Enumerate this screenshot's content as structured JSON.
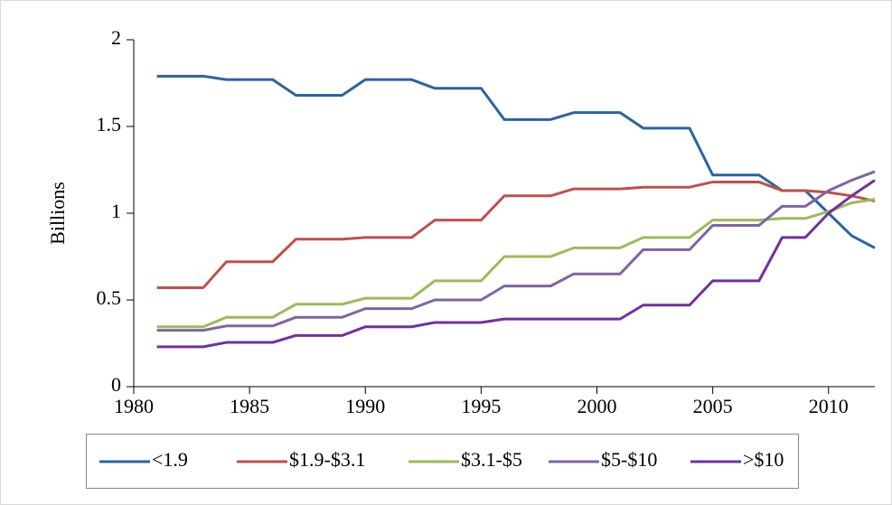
{
  "chart_data": {
    "type": "line",
    "y_label": "Billions",
    "x": [
      1981,
      1982,
      1983,
      1984,
      1985,
      1986,
      1987,
      1988,
      1989,
      1990,
      1991,
      1992,
      1993,
      1994,
      1995,
      1996,
      1997,
      1998,
      1999,
      2000,
      2001,
      2002,
      2003,
      2004,
      2005,
      2006,
      2007,
      2008,
      2009,
      2010,
      2011,
      2012
    ],
    "xlim": [
      1980,
      2012
    ],
    "xticks": [
      1980,
      1985,
      1990,
      1995,
      2000,
      2005,
      2010
    ],
    "ylim": [
      0,
      2
    ],
    "yticks": [
      0,
      0.5,
      1,
      1.5,
      2
    ],
    "grid": false,
    "legend": "bottom",
    "series": [
      {
        "name": "<1.9",
        "color": "#2a64a0",
        "values": [
          1.79,
          1.79,
          1.79,
          1.77,
          1.77,
          1.77,
          1.68,
          1.68,
          1.68,
          1.77,
          1.77,
          1.77,
          1.72,
          1.72,
          1.72,
          1.54,
          1.54,
          1.54,
          1.58,
          1.58,
          1.58,
          1.49,
          1.49,
          1.49,
          1.22,
          1.22,
          1.22,
          1.13,
          1.13,
          1.0,
          0.87,
          0.8
        ]
      },
      {
        "name": "$1.9-$3.1",
        "color": "#c0504d",
        "values": [
          0.57,
          0.57,
          0.57,
          0.72,
          0.72,
          0.72,
          0.85,
          0.85,
          0.85,
          0.86,
          0.86,
          0.86,
          0.96,
          0.96,
          0.96,
          1.1,
          1.1,
          1.1,
          1.14,
          1.14,
          1.14,
          1.15,
          1.15,
          1.15,
          1.18,
          1.18,
          1.18,
          1.13,
          1.13,
          1.12,
          1.1,
          1.07
        ]
      },
      {
        "name": "$3.1-$5",
        "color": "#9bbb59",
        "values": [
          0.345,
          0.345,
          0.345,
          0.4,
          0.4,
          0.4,
          0.475,
          0.475,
          0.475,
          0.51,
          0.51,
          0.51,
          0.61,
          0.61,
          0.61,
          0.75,
          0.75,
          0.75,
          0.8,
          0.8,
          0.8,
          0.86,
          0.86,
          0.86,
          0.96,
          0.96,
          0.96,
          0.97,
          0.97,
          1.01,
          1.06,
          1.08
        ]
      },
      {
        "name": "$5-$10",
        "color": "#8064a2",
        "values": [
          0.325,
          0.325,
          0.325,
          0.35,
          0.35,
          0.35,
          0.4,
          0.4,
          0.4,
          0.45,
          0.45,
          0.45,
          0.5,
          0.5,
          0.5,
          0.58,
          0.58,
          0.58,
          0.65,
          0.65,
          0.65,
          0.79,
          0.79,
          0.79,
          0.93,
          0.93,
          0.93,
          1.04,
          1.04,
          1.13,
          1.19,
          1.24
        ]
      },
      {
        "name": ">$10",
        "color": "#7030a0",
        "values": [
          0.23,
          0.23,
          0.23,
          0.255,
          0.255,
          0.255,
          0.295,
          0.295,
          0.295,
          0.345,
          0.345,
          0.345,
          0.37,
          0.37,
          0.37,
          0.39,
          0.39,
          0.39,
          0.39,
          0.39,
          0.39,
          0.47,
          0.47,
          0.47,
          0.61,
          0.61,
          0.61,
          0.86,
          0.86,
          1.0,
          1.1,
          1.19
        ]
      }
    ]
  }
}
